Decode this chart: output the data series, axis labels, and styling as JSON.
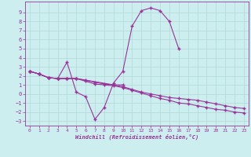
{
  "series": {
    "s1_x": [
      0,
      1,
      2,
      3,
      4,
      5,
      9,
      10
    ],
    "s1_y": [
      2.5,
      2.2,
      1.8,
      1.7,
      1.7,
      1.7,
      1.0,
      1.0
    ],
    "s2_x": [
      0,
      1,
      2,
      3,
      4,
      5,
      6,
      7,
      8,
      9,
      10,
      11,
      12,
      13,
      14,
      15,
      16
    ],
    "s2_y": [
      2.5,
      2.2,
      1.8,
      1.7,
      3.5,
      0.2,
      -0.3,
      -2.8,
      -1.5,
      1.2,
      2.5,
      7.5,
      9.2,
      9.5,
      9.2,
      8.0,
      5.0
    ],
    "s3_x": [
      0,
      1,
      2,
      3,
      4,
      5,
      6,
      7,
      8,
      9,
      10,
      11,
      12,
      13,
      14,
      15,
      16,
      17,
      18,
      19,
      20,
      21,
      22,
      23
    ],
    "s3_y": [
      2.5,
      2.2,
      1.8,
      1.7,
      1.7,
      1.7,
      1.5,
      1.3,
      1.1,
      1.0,
      0.8,
      0.5,
      0.2,
      0.0,
      -0.2,
      -0.4,
      -0.5,
      -0.6,
      -0.7,
      -0.9,
      -1.1,
      -1.3,
      -1.5,
      -1.6
    ],
    "s4_x": [
      0,
      1,
      2,
      3,
      4,
      5,
      6,
      7,
      8,
      9,
      10,
      11,
      12,
      13,
      14,
      15,
      16,
      17,
      18,
      19,
      20,
      21,
      22,
      23
    ],
    "s4_y": [
      2.5,
      2.2,
      1.8,
      1.7,
      1.7,
      1.7,
      1.4,
      1.1,
      1.0,
      0.9,
      0.7,
      0.4,
      0.1,
      -0.2,
      -0.5,
      -0.7,
      -1.0,
      -1.1,
      -1.3,
      -1.5,
      -1.7,
      -1.8,
      -2.0,
      -2.1
    ]
  },
  "color": "#993399",
  "bgcolor": "#cceeee",
  "grid_color": "#aadddd",
  "xlabel": "Windchill (Refroidissement éolien,°C)",
  "ylim": [
    -3.5,
    10.2
  ],
  "xlim": [
    -0.5,
    23.5
  ],
  "yticks": [
    -3,
    -2,
    -1,
    0,
    1,
    2,
    3,
    4,
    5,
    6,
    7,
    8,
    9
  ],
  "xticks": [
    0,
    1,
    2,
    3,
    4,
    5,
    6,
    7,
    8,
    9,
    10,
    11,
    12,
    13,
    14,
    15,
    16,
    17,
    18,
    19,
    20,
    21,
    22,
    23
  ],
  "figsize": [
    3.2,
    2.0
  ],
  "dpi": 100
}
